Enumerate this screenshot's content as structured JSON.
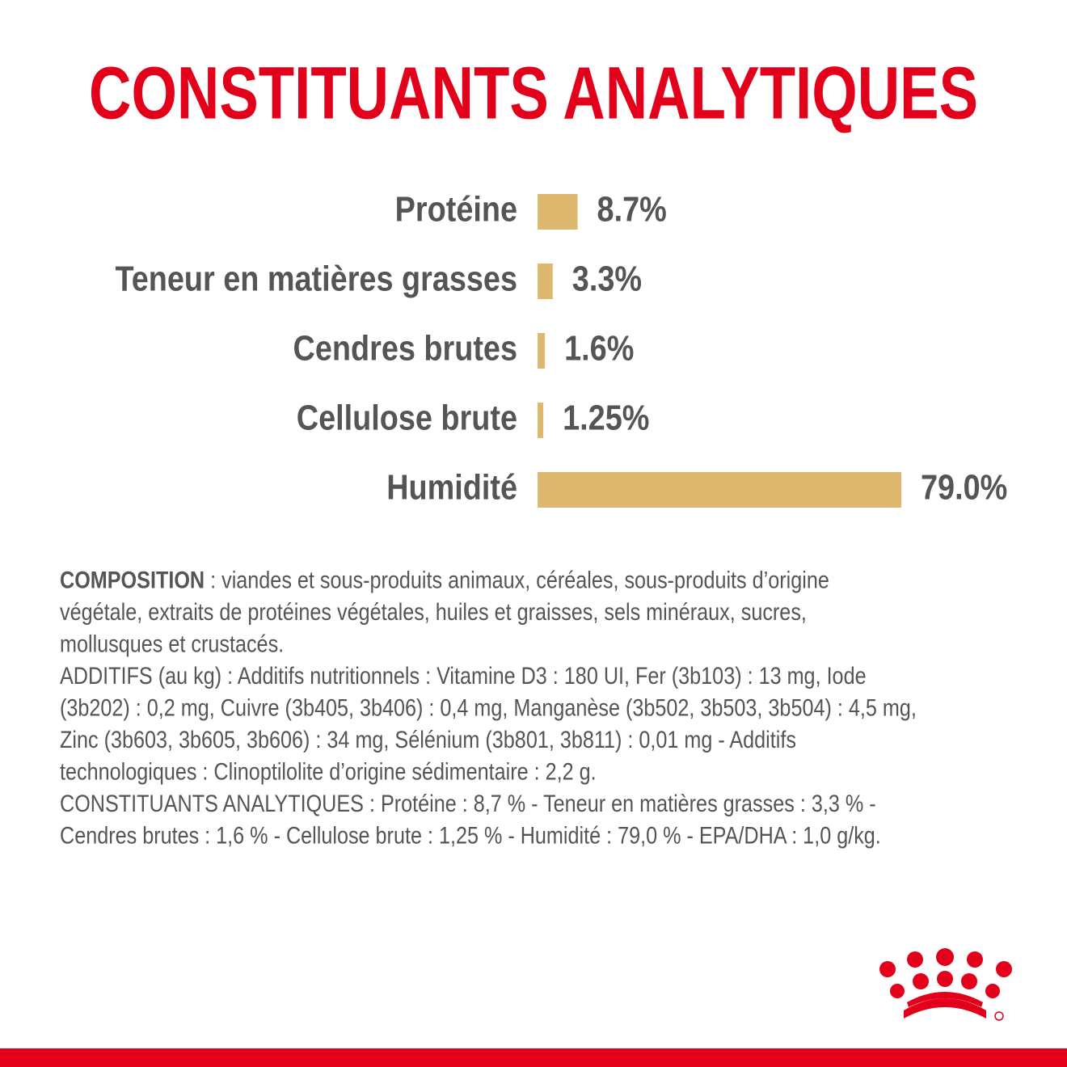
{
  "chart_data": {
    "type": "bar",
    "orientation": "horizontal",
    "title": "CONSTITUANTS ANALYTIQUES",
    "categories": [
      "Protéine",
      "Teneur en matières grasses",
      "Cendres brutes",
      "Cellulose brute",
      "Humidité"
    ],
    "values": [
      8.7,
      3.3,
      1.6,
      1.25,
      79.0
    ],
    "value_labels": [
      "8.7%",
      "3.3%",
      "1.6%",
      "1.25%",
      "79.0%"
    ],
    "color": "#dfb86f"
  },
  "composition": {
    "label": "COMPOSITION",
    "lines": [
      " : viandes et sous-produits animaux, céréales, sous-produits d’origine",
      "végétale, extraits de protéines végétales, huiles et graisses, sels minéraux, sucres,",
      "mollusques et crustacés.",
      "ADDITIFS (au kg) : Additifs nutritionnels : Vitamine D3 : 180 UI, Fer (3b103) : 13 mg, Iode",
      "(3b202) : 0,2 mg, Cuivre (3b405, 3b406) : 0,4 mg, Manganèse (3b502, 3b503, 3b504) : 4,5 mg,",
      "Zinc (3b603, 3b605, 3b606) : 34 mg, Sélénium (3b801, 3b811) : 0,01 mg - Additifs",
      "technologiques : Clinoptilolite d’origine sédimentaire : 2,2 g.",
      "CONSTITUANTS ANALYTIQUES : Protéine : 8,7 % - Teneur en matières grasses : 3,3 % -",
      "Cendres brutes : 1,6 % - Cellulose brute : 1,25 % - Humidité : 79,0 % - EPA/DHA : 1,0 g/kg."
    ]
  }
}
